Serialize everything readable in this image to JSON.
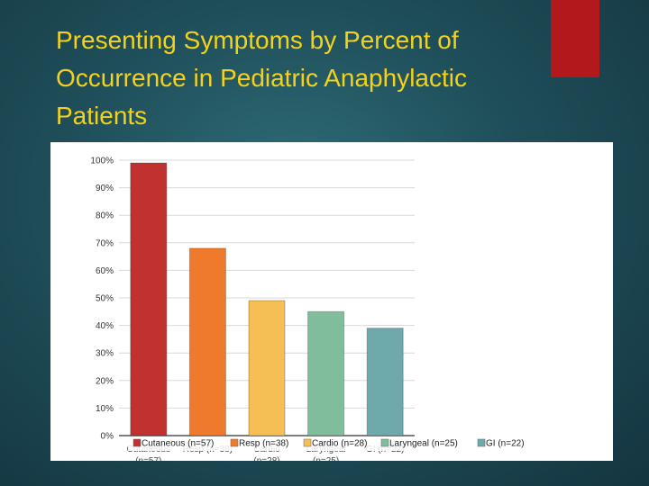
{
  "slide": {
    "title_line1": "Presenting Symptoms by Percent of",
    "title_line2": "Occurrence in Pediatric Anaphylactic",
    "title_line3": "Patients",
    "accent_color": "#b3191c",
    "title_color": "#f4d21c"
  },
  "chart_data": {
    "type": "bar",
    "title": "",
    "xlabel": "",
    "ylabel": "",
    "ylim": [
      0,
      100
    ],
    "y_ticks": [
      "0%",
      "10%",
      "20%",
      "30%",
      "40%",
      "50%",
      "60%",
      "70%",
      "80%",
      "90%",
      "100%"
    ],
    "grid": true,
    "legend_position": "bottom",
    "categories": [
      "Cutaneous (n=57)",
      "Resp (n=38)",
      "Cardio (n=28)",
      "Laryngeal (n=25)",
      "GI (n=22)"
    ],
    "category_labels_line1": [
      "Cutaneous",
      "Resp (n=38)",
      "Cardio",
      "Laryngeal",
      "GI (n=22)"
    ],
    "category_labels_line2": [
      "(n=57)",
      "",
      "(n=28)",
      "(n=25)",
      ""
    ],
    "values": [
      99,
      68,
      49,
      45,
      39
    ],
    "colors": [
      "#c0312f",
      "#f07a2c",
      "#f6bf55",
      "#80bd9c",
      "#6ea9ab"
    ]
  }
}
